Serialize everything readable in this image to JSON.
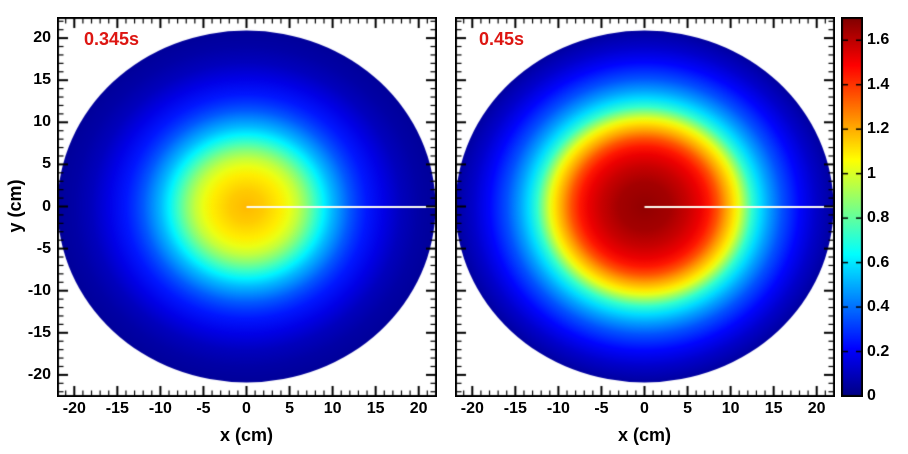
{
  "figure": {
    "background": "#ffffff",
    "frame_color": "#000000",
    "text_color": "#000000"
  },
  "axes": {
    "x_label": "x (cm)",
    "y_label": "y (cm)",
    "x_ticks": [
      -20,
      -15,
      -10,
      -5,
      0,
      5,
      10,
      15,
      20
    ],
    "y_ticks": [
      20,
      15,
      10,
      5,
      0,
      -5,
      -10,
      -15,
      -20
    ],
    "x_range": [
      -22,
      22
    ],
    "y_range": [
      -22.5,
      22.5
    ],
    "minor_tick_step_cm": 1
  },
  "chart_data": [
    {
      "type": "heatmap",
      "title": "0.345s",
      "annotation_color": "#dd1612",
      "shape": "disc",
      "disc_radius_cm": 22,
      "center_cm": [
        0,
        0
      ],
      "radial_profile": {
        "r_cm": [
          0,
          2,
          4,
          5,
          6,
          7,
          8,
          9,
          10,
          11,
          12,
          13,
          14,
          16,
          18,
          20,
          22
        ],
        "value": [
          1.18,
          1.15,
          1.09,
          1.03,
          0.96,
          0.86,
          0.74,
          0.62,
          0.52,
          0.44,
          0.36,
          0.3,
          0.25,
          0.17,
          0.1,
          0.06,
          0.04
        ]
      },
      "marker_line": {
        "from_cm": [
          0,
          0
        ],
        "to_cm": [
          22,
          0
        ],
        "color": "#fdfdf2"
      }
    },
    {
      "type": "heatmap",
      "title": "0.45s",
      "annotation_color": "#dd1612",
      "shape": "disc",
      "disc_radius_cm": 22,
      "center_cm": [
        0,
        0
      ],
      "radial_profile": {
        "r_cm": [
          0,
          3,
          5,
          6.5,
          7.5,
          8.5,
          9.5,
          10.5,
          11,
          11.5,
          12,
          12.5,
          13.5,
          14.5,
          16,
          18,
          20,
          22
        ],
        "value": [
          1.67,
          1.64,
          1.58,
          1.52,
          1.45,
          1.35,
          1.22,
          1.1,
          1.02,
          0.92,
          0.82,
          0.72,
          0.58,
          0.48,
          0.35,
          0.22,
          0.12,
          0.05
        ]
      },
      "marker_line": {
        "from_cm": [
          0,
          0
        ],
        "to_cm": [
          22,
          0
        ],
        "color": "#fdfdf2"
      }
    }
  ],
  "colorbar": {
    "min": 0,
    "max": 1.7,
    "ticks": [
      0,
      0.2,
      0.4,
      0.6,
      0.8,
      1,
      1.2,
      1.4,
      1.6
    ],
    "tick_labels": [
      "0",
      "0.2",
      "0.4",
      "0.6",
      "0.8",
      "1",
      "1.2",
      "1.4",
      "1.6"
    ],
    "colormap": "jet",
    "jet_anchors": [
      {
        "p": 0.0,
        "color": "#000083"
      },
      {
        "p": 0.125,
        "color": "#0000ff"
      },
      {
        "p": 0.375,
        "color": "#00ffff"
      },
      {
        "p": 0.625,
        "color": "#ffff00"
      },
      {
        "p": 0.875,
        "color": "#ff0000"
      },
      {
        "p": 1.0,
        "color": "#800000"
      }
    ]
  }
}
